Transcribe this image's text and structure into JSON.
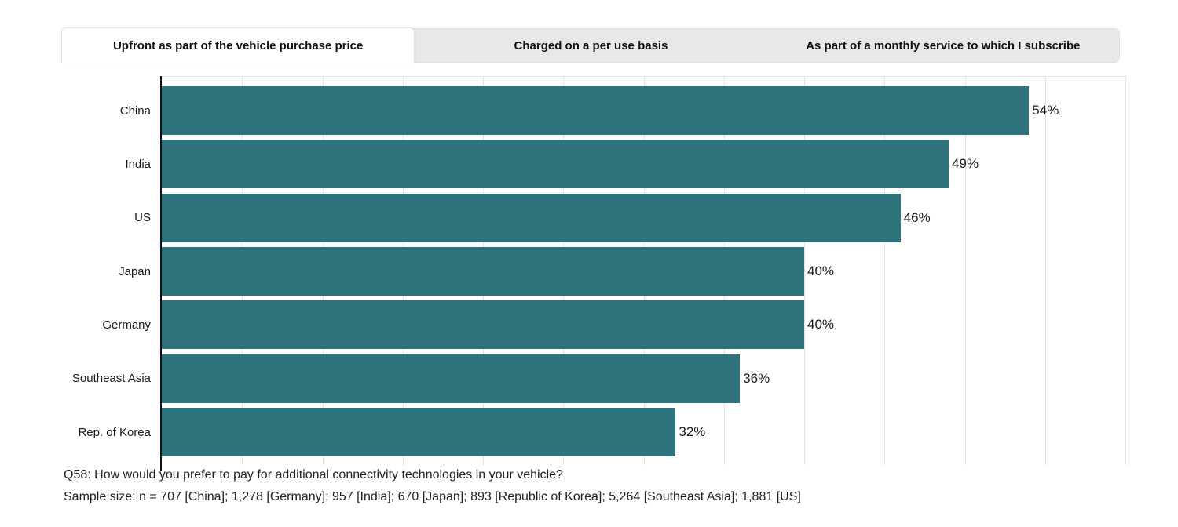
{
  "tabs": [
    {
      "label": "Upfront as part of the vehicle purchase price",
      "active": true
    },
    {
      "label": "Charged on a per use basis",
      "active": false
    },
    {
      "label": "As part of a monthly service to which I subscribe",
      "active": false
    }
  ],
  "chart_data": {
    "type": "bar",
    "orientation": "horizontal",
    "categories": [
      "China",
      "India",
      "US",
      "Japan",
      "Germany",
      "Southeast Asia",
      "Rep. of Korea"
    ],
    "values": [
      54,
      49,
      46,
      40,
      40,
      36,
      32
    ],
    "value_labels": [
      "54%",
      "49%",
      "46%",
      "40%",
      "40%",
      "36%",
      "32%"
    ],
    "xlim": [
      0,
      60
    ],
    "gridline_step": 5,
    "grid": true,
    "legend": "none",
    "bar_color": "#2f737d",
    "title": "",
    "xlabel": "",
    "ylabel": ""
  },
  "footer": {
    "question": "Q58: How would you prefer to pay for additional connectivity technologies in your vehicle?",
    "sample_size": "Sample size: n = 707 [China]; 1,278 [Germany]; 957 [India]; 670 [Japan]; 893 [Republic of Korea]; 5,264 [Southeast Asia]; 1,881 [US]"
  },
  "colors": {
    "bar": "#2f737d",
    "tab_strip_bg": "#e8e8e8",
    "active_tab_bg": "#ffffff",
    "gridline": "#e4e4e4",
    "axis": "#111111",
    "text": "#1f1f1f"
  }
}
